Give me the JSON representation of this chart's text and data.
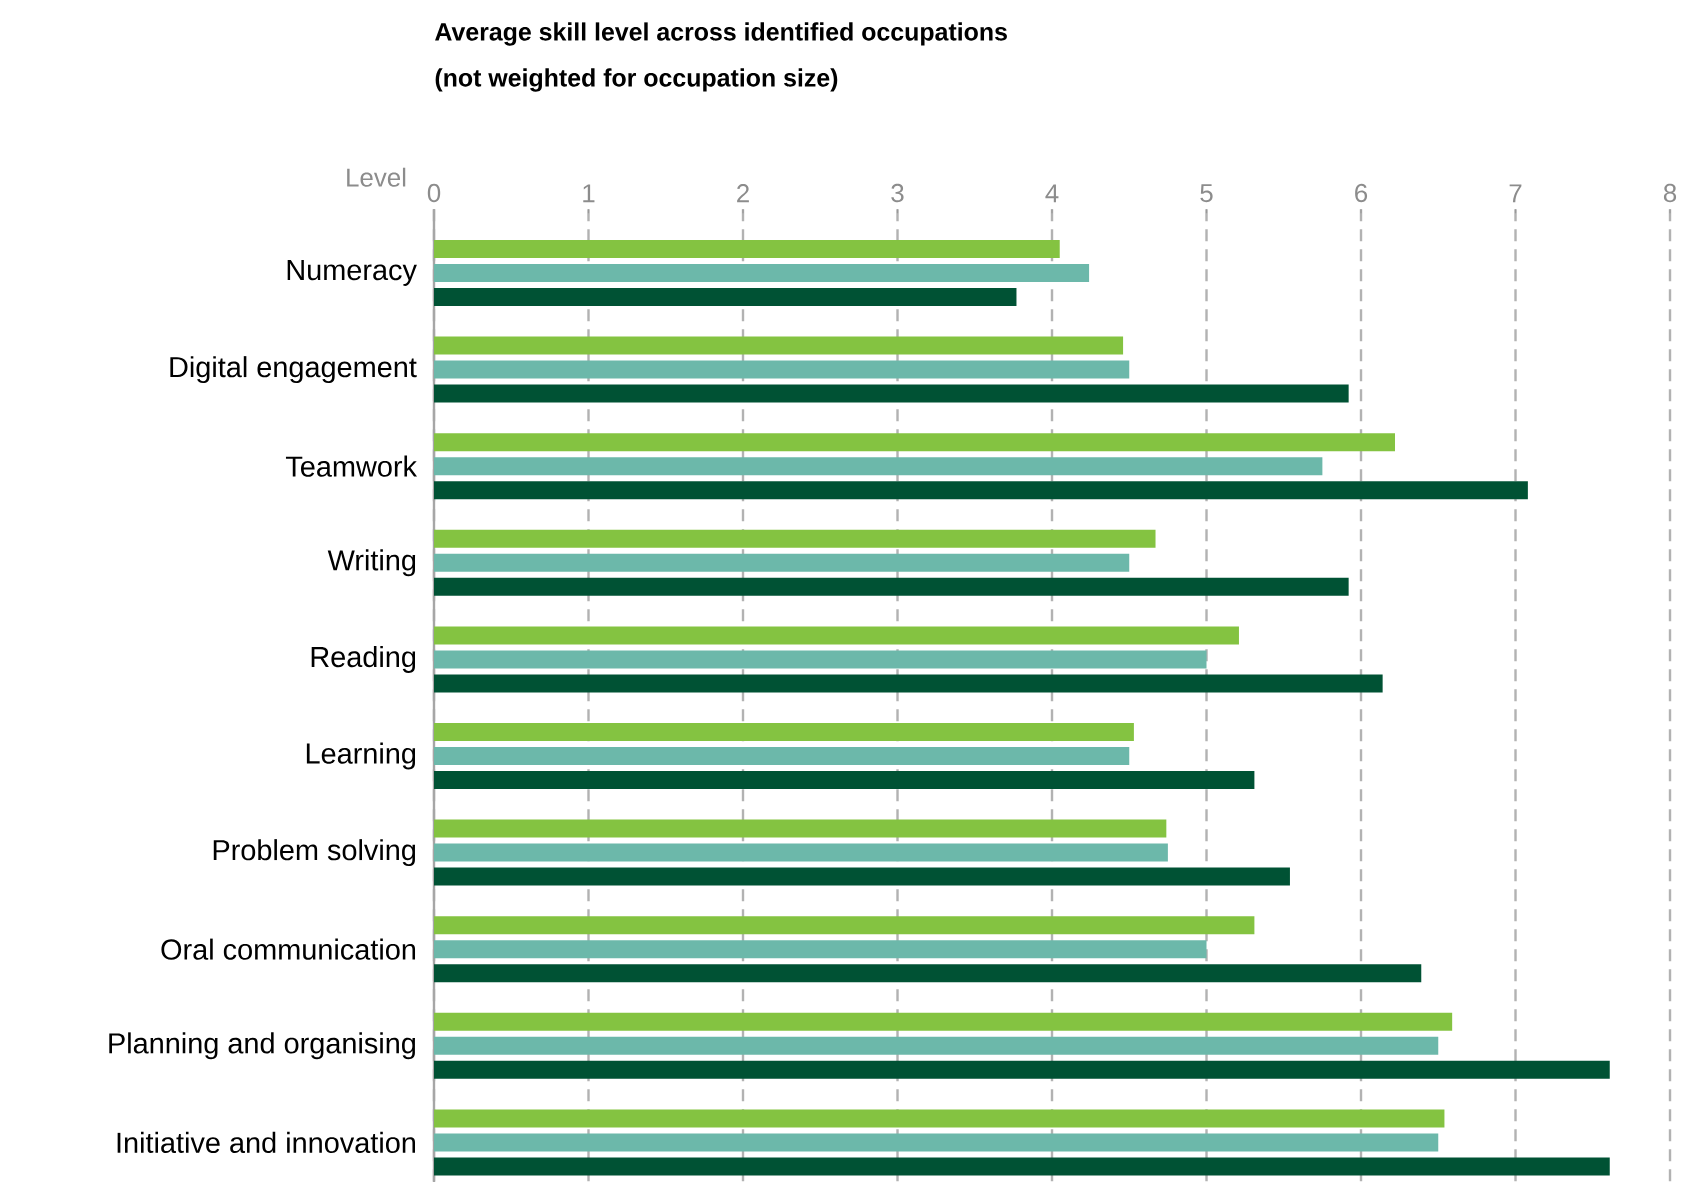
{
  "chart_data": {
    "type": "bar",
    "orientation": "horizontal",
    "title": "Average skill level across identified occupations",
    "subtitle": "(not weighted for occupation size)",
    "xlabel": "Level",
    "categories": [
      "Numeracy",
      "Digital engagement",
      "Teamwork",
      "Writing",
      "Reading",
      "Learning",
      "Problem solving",
      "Oral communication",
      "Planning and organising",
      "Initiative and innovation"
    ],
    "series": [
      {
        "color": "#84c341",
        "values": [
          4.05,
          4.46,
          6.22,
          4.67,
          5.21,
          4.53,
          4.74,
          5.31,
          6.59,
          6.54
        ]
      },
      {
        "color": "#6cb8aa",
        "values": [
          4.24,
          4.5,
          5.75,
          4.5,
          5.0,
          4.5,
          4.75,
          5.0,
          6.5,
          6.5
        ]
      },
      {
        "color": "#005234",
        "values": [
          3.77,
          5.92,
          7.08,
          5.92,
          6.14,
          5.31,
          5.54,
          6.39,
          7.61,
          7.61
        ]
      }
    ],
    "xlim": [
      0,
      8
    ],
    "xticks": [
      0,
      1,
      2,
      3,
      4,
      5,
      6,
      7,
      8
    ],
    "grid": "x"
  }
}
